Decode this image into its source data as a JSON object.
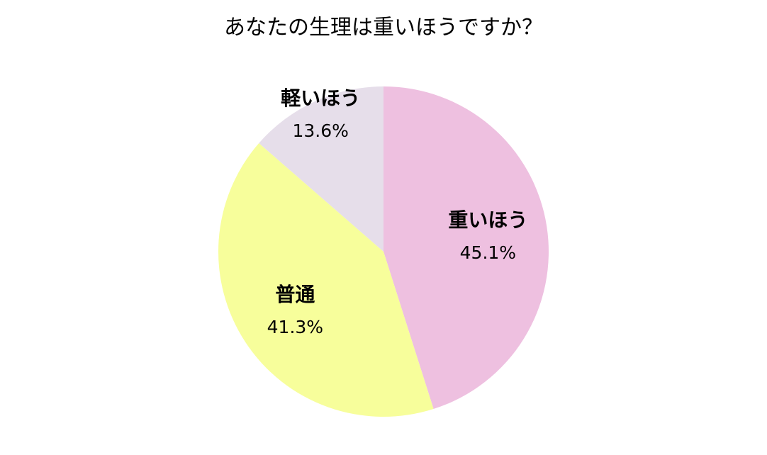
{
  "chart_data": {
    "type": "pie",
    "title": "あなたの生理は重いほうですか？",
    "categories": [
      "重いほう",
      "普通",
      "軽いほう"
    ],
    "values": [
      45.1,
      41.3,
      13.6
    ],
    "value_labels": [
      "45.1%",
      "41.3%",
      "13.6%"
    ],
    "colors": [
      "#eec0e0",
      "#f7fe9b",
      "#e6deea"
    ]
  }
}
